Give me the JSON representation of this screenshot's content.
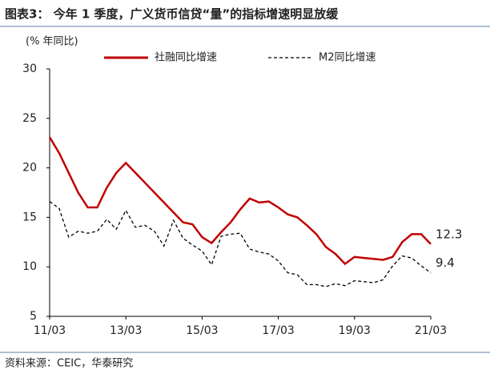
{
  "chart_data": {
    "type": "line",
    "title": "图表3： 今年 1 季度，广义货币信贷“量”的指标增速明显放缓",
    "y_label": "(% 年同比)",
    "source": "资料来源：CEIC，华泰研究",
    "categories": [
      "11/03",
      null,
      null,
      null,
      null,
      null,
      null,
      null,
      "13/03",
      null,
      null,
      null,
      null,
      null,
      null,
      null,
      "15/03",
      null,
      null,
      null,
      null,
      null,
      null,
      null,
      "17/03",
      null,
      null,
      null,
      null,
      null,
      null,
      null,
      "19/03",
      null,
      null,
      null,
      null,
      null,
      null,
      null,
      "21/03"
    ],
    "series": [
      {
        "name": "社融同比增速",
        "color": "#c00000",
        "style": "solid",
        "values": [
          23.1,
          21.5,
          19.5,
          17.5,
          16.0,
          16.0,
          18.0,
          19.5,
          20.5,
          19.5,
          18.5,
          17.5,
          16.5,
          15.5,
          14.5,
          14.3,
          13.0,
          12.4,
          13.5,
          14.5,
          15.8,
          16.9,
          16.5,
          16.6,
          16.0,
          15.3,
          15.0,
          14.2,
          13.3,
          12.0,
          11.3,
          10.3,
          11.0,
          10.9,
          10.8,
          10.7,
          11.0,
          12.5,
          13.3,
          13.3,
          12.3
        ]
      },
      {
        "name": "M2同比增速",
        "color": "#000000",
        "style": "dashed",
        "values": [
          16.6,
          15.9,
          13.0,
          13.6,
          13.4,
          13.6,
          14.8,
          13.8,
          15.7,
          14.0,
          14.2,
          13.6,
          12.1,
          14.7,
          12.9,
          12.2,
          11.6,
          10.2,
          13.1,
          13.3,
          13.4,
          11.8,
          11.5,
          11.3,
          10.6,
          9.4,
          9.2,
          8.2,
          8.2,
          8.0,
          8.3,
          8.1,
          8.6,
          8.5,
          8.4,
          8.7,
          10.1,
          11.1,
          10.9,
          10.1,
          9.4
        ]
      }
    ],
    "ylim": [
      5,
      30
    ],
    "yticks": [
      5,
      10,
      15,
      20,
      25,
      30
    ],
    "grid": false
  }
}
